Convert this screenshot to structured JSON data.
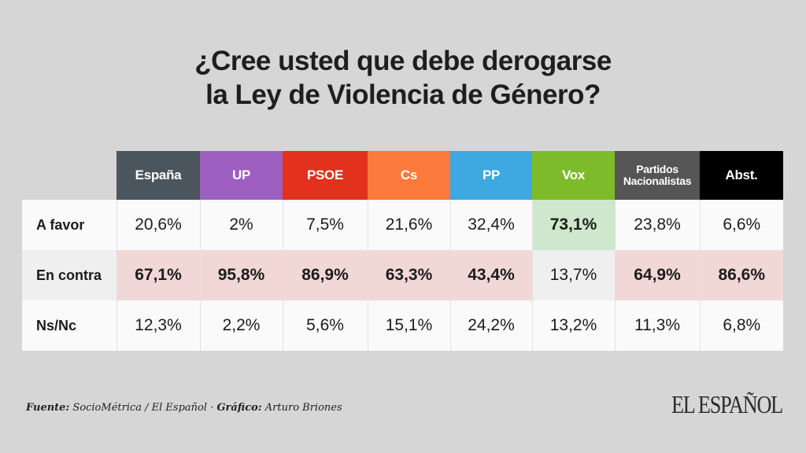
{
  "chart_data": {
    "type": "table",
    "title": [
      "¿Cree usted que debe derogarse",
      "la Ley de Violencia de Género?"
    ],
    "columns": [
      {
        "label": "España",
        "color": "#4b555d"
      },
      {
        "label": "UP",
        "color": "#9c5fc0"
      },
      {
        "label": "PSOE",
        "color": "#e2311d"
      },
      {
        "label": "Cs",
        "color": "#fb7a3c"
      },
      {
        "label": "PP",
        "color": "#3ea8e0"
      },
      {
        "label": "Vox",
        "color": "#7dbb2a"
      },
      {
        "label": "Partidos Nacionalistas",
        "label_lines": [
          "Partidos",
          "Nacionalistas"
        ],
        "color": "#555555"
      },
      {
        "label": "Abst.",
        "color": "#000000"
      }
    ],
    "rows": [
      {
        "label": "A favor",
        "values": [
          "20,6%",
          "2%",
          "7,5%",
          "21,6%",
          "32,4%",
          "73,1%",
          "23,8%",
          "6,6%"
        ],
        "numeric": [
          20.6,
          2,
          7.5,
          21.6,
          32.4,
          73.1,
          23.8,
          6.6
        ],
        "highlight": [
          null,
          null,
          null,
          null,
          null,
          "green",
          null,
          null
        ]
      },
      {
        "label": "En contra",
        "values": [
          "67,1%",
          "95,8%",
          "86,9%",
          "63,3%",
          "43,4%",
          "13,7%",
          "64,9%",
          "86,6%"
        ],
        "numeric": [
          67.1,
          95.8,
          86.9,
          63.3,
          43.4,
          13.7,
          64.9,
          86.6
        ],
        "highlight": [
          "red",
          "red",
          "red",
          "red",
          "red",
          null,
          "red",
          "red"
        ]
      },
      {
        "label": "Ns/Nc",
        "values": [
          "12,3%",
          "2,2%",
          "5,6%",
          "15,1%",
          "24,2%",
          "13,2%",
          "11,3%",
          "6,8%"
        ],
        "numeric": [
          12.3,
          2.2,
          5.6,
          15.1,
          24.2,
          13.2,
          11.3,
          6.8
        ],
        "highlight": [
          null,
          null,
          null,
          null,
          null,
          null,
          null,
          null
        ]
      }
    ],
    "highlight_colors": {
      "red": "#f2d7d7",
      "green": "#cfe7cc"
    }
  },
  "footer": {
    "source_label": "Fuente:",
    "source_text": " SocioMétrica / El Español · ",
    "credit_label": "Gráfico:",
    "credit_text": " Arturo Briones"
  },
  "logo": "EL ESPAÑOL"
}
